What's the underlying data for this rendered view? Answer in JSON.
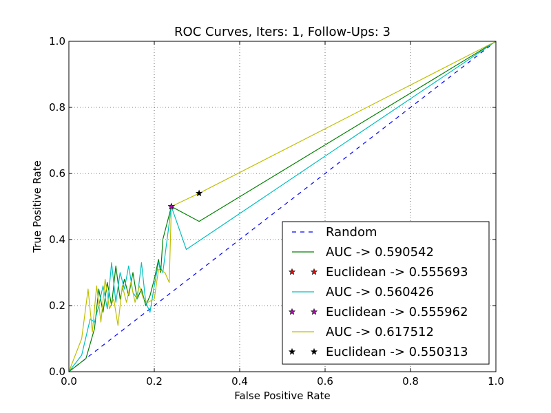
{
  "chart_data": {
    "type": "line",
    "title": "ROC Curves, Iters: 1, Follow-Ups: 3",
    "xlabel": "False Positive Rate",
    "ylabel": "True Positive Rate",
    "xlim": [
      0.0,
      1.0
    ],
    "ylim": [
      0.0,
      1.0
    ],
    "xticks": [
      "0.0",
      "0.2",
      "0.4",
      "0.6",
      "0.8",
      "1.0"
    ],
    "yticks": [
      "0.0",
      "0.2",
      "0.4",
      "0.6",
      "0.8",
      "1.0"
    ],
    "grid": true,
    "legend_position": "lower-right",
    "series": [
      {
        "name": "Random",
        "kind": "line",
        "style": "dashed",
        "color": "#0000ff",
        "points": [
          [
            0.0,
            0.0
          ],
          [
            1.0,
            1.0
          ]
        ]
      },
      {
        "name": "AUC -> 0.590542",
        "kind": "line",
        "style": "solid",
        "color": "#008000",
        "points": [
          [
            0.0,
            0.0
          ],
          [
            0.04,
            0.04
          ],
          [
            0.06,
            0.13
          ],
          [
            0.07,
            0.25
          ],
          [
            0.08,
            0.18
          ],
          [
            0.09,
            0.27
          ],
          [
            0.1,
            0.2
          ],
          [
            0.11,
            0.32
          ],
          [
            0.12,
            0.22
          ],
          [
            0.13,
            0.28
          ],
          [
            0.14,
            0.23
          ],
          [
            0.15,
            0.3
          ],
          [
            0.16,
            0.22
          ],
          [
            0.17,
            0.25
          ],
          [
            0.18,
            0.2
          ],
          [
            0.19,
            0.23
          ],
          [
            0.2,
            0.28
          ],
          [
            0.21,
            0.34
          ],
          [
            0.215,
            0.3
          ],
          [
            0.22,
            0.4
          ],
          [
            0.24,
            0.5
          ],
          [
            0.305,
            0.455
          ],
          [
            1.0,
            1.0
          ]
        ]
      },
      {
        "name": "Euclidean -> 0.555693",
        "kind": "marker",
        "marker": "star",
        "color": "#ff0000",
        "points": [
          [
            0.24,
            0.5
          ]
        ]
      },
      {
        "name": "AUC -> 0.560426",
        "kind": "line",
        "style": "solid",
        "color": "#00bfbf",
        "points": [
          [
            0.0,
            0.0
          ],
          [
            0.03,
            0.05
          ],
          [
            0.05,
            0.16
          ],
          [
            0.06,
            0.15
          ],
          [
            0.07,
            0.2
          ],
          [
            0.08,
            0.26
          ],
          [
            0.09,
            0.19
          ],
          [
            0.1,
            0.33
          ],
          [
            0.11,
            0.21
          ],
          [
            0.12,
            0.3
          ],
          [
            0.13,
            0.25
          ],
          [
            0.14,
            0.32
          ],
          [
            0.15,
            0.24
          ],
          [
            0.16,
            0.22
          ],
          [
            0.17,
            0.33
          ],
          [
            0.18,
            0.21
          ],
          [
            0.19,
            0.18
          ],
          [
            0.2,
            0.26
          ],
          [
            0.21,
            0.33
          ],
          [
            0.22,
            0.3
          ],
          [
            0.24,
            0.5
          ],
          [
            0.275,
            0.37
          ],
          [
            1.0,
            1.0
          ]
        ]
      },
      {
        "name": "Euclidean -> 0.555962",
        "kind": "marker",
        "marker": "star",
        "color": "#bf00bf",
        "points": [
          [
            0.24,
            0.5
          ]
        ]
      },
      {
        "name": "AUC -> 0.617512",
        "kind": "line",
        "style": "solid",
        "color": "#bfbf00",
        "points": [
          [
            0.0,
            0.0
          ],
          [
            0.03,
            0.1
          ],
          [
            0.045,
            0.25
          ],
          [
            0.055,
            0.12
          ],
          [
            0.065,
            0.26
          ],
          [
            0.075,
            0.15
          ],
          [
            0.085,
            0.28
          ],
          [
            0.095,
            0.19
          ],
          [
            0.105,
            0.22
          ],
          [
            0.115,
            0.14
          ],
          [
            0.125,
            0.26
          ],
          [
            0.135,
            0.21
          ],
          [
            0.145,
            0.27
          ],
          [
            0.155,
            0.21
          ],
          [
            0.165,
            0.26
          ],
          [
            0.175,
            0.22
          ],
          [
            0.185,
            0.21
          ],
          [
            0.2,
            0.22
          ],
          [
            0.21,
            0.31
          ],
          [
            0.225,
            0.3
          ],
          [
            0.235,
            0.27
          ],
          [
            0.24,
            0.5
          ],
          [
            0.305,
            0.54
          ],
          [
            1.0,
            1.0
          ]
        ]
      },
      {
        "name": "Euclidean -> 0.550313",
        "kind": "marker",
        "marker": "star",
        "color": "#000000",
        "points": [
          [
            0.305,
            0.54
          ]
        ]
      }
    ]
  }
}
